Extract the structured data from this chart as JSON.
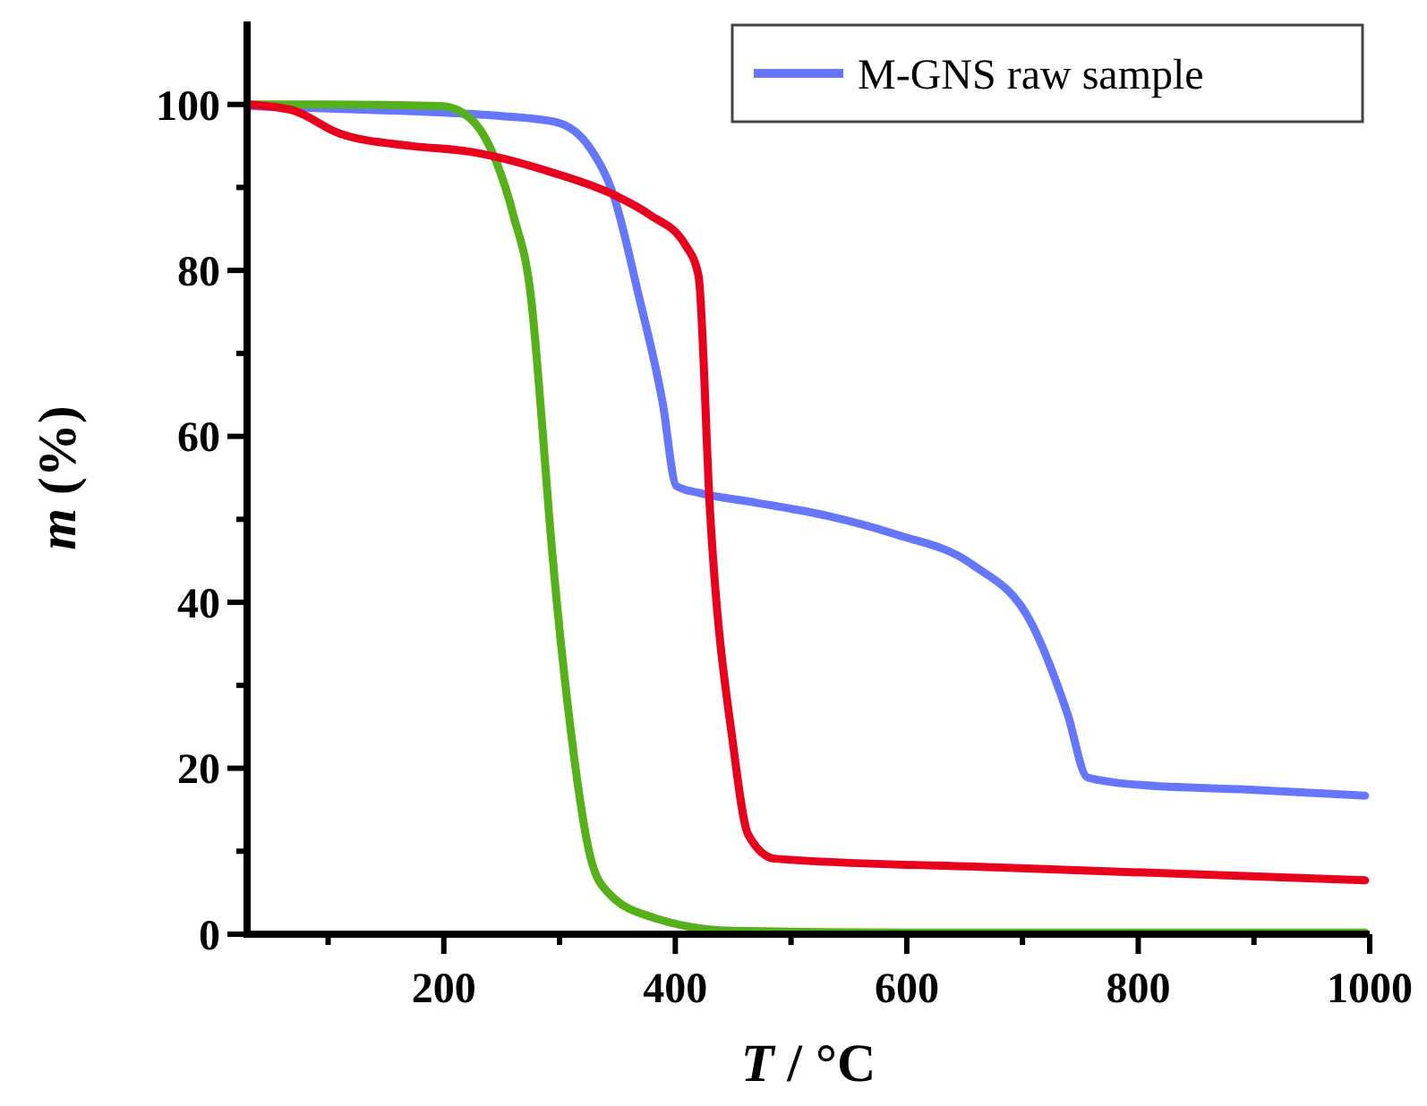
{
  "chart_data": {
    "type": "line",
    "xlabel": "T / °C",
    "ylabel": "m (%)",
    "xlim": [
      30,
      1000
    ],
    "ylim": [
      0,
      110
    ],
    "xticks": [
      {
        "value": 100,
        "label": null
      },
      200,
      {
        "value": 300,
        "label": null
      },
      400,
      {
        "value": 500,
        "label": null
      },
      600,
      {
        "value": 700,
        "label": null
      },
      800,
      {
        "value": 900,
        "label": null
      },
      1000
    ],
    "yticks": [
      0,
      {
        "value": 10,
        "label": null
      },
      20,
      {
        "value": 30,
        "label": null
      },
      40,
      {
        "value": 50,
        "label": null
      },
      60,
      {
        "value": 70,
        "label": null
      },
      80,
      {
        "value": 90,
        "label": null
      },
      100
    ],
    "grid": false,
    "legend": "top right",
    "marker": "none",
    "line_style": "solid",
    "series": [
      {
        "name": "M-GNS raw sample",
        "color": "#6677ff",
        "x": [
          30,
          100,
          203,
          250,
          296,
          327,
          347,
          368,
          389,
          401,
          420,
          470,
          532,
          590,
          656,
          708,
          739,
          756,
          800,
          900,
          996
        ],
        "values": [
          99.8,
          99.5,
          99.0,
          98.6,
          97.9,
          94.6,
          88.9,
          77.2,
          64.1,
          54,
          53.2,
          52,
          50.4,
          48.2,
          44.6,
          37.4,
          26.5,
          18.9,
          18,
          17.4,
          16.7
        ]
      },
      {
        "color": "#55b01a",
        "x": [
          30,
          100,
          198,
          223,
          245,
          260,
          276,
          285,
          291,
          308,
          327,
          342,
          381,
          450,
          600,
          800,
          996
        ],
        "values": [
          100,
          100,
          99.8,
          98.3,
          93.2,
          86.7,
          75.9,
          61.3,
          50.4,
          26.5,
          9.1,
          5,
          2,
          0.4,
          0.2,
          0.2,
          0.2
        ]
      },
      {
        "color": "#e8001c",
        "x": [
          30,
          69,
          110,
          172,
          223,
          296,
          347,
          378,
          409,
          420,
          430,
          450,
          463,
          486,
          687,
          996
        ],
        "values": [
          100,
          99.3,
          96.5,
          95,
          94.3,
          91.7,
          89.1,
          86.7,
          83,
          79.4,
          51,
          22.8,
          12,
          9.1,
          8,
          6.5
        ]
      }
    ]
  }
}
